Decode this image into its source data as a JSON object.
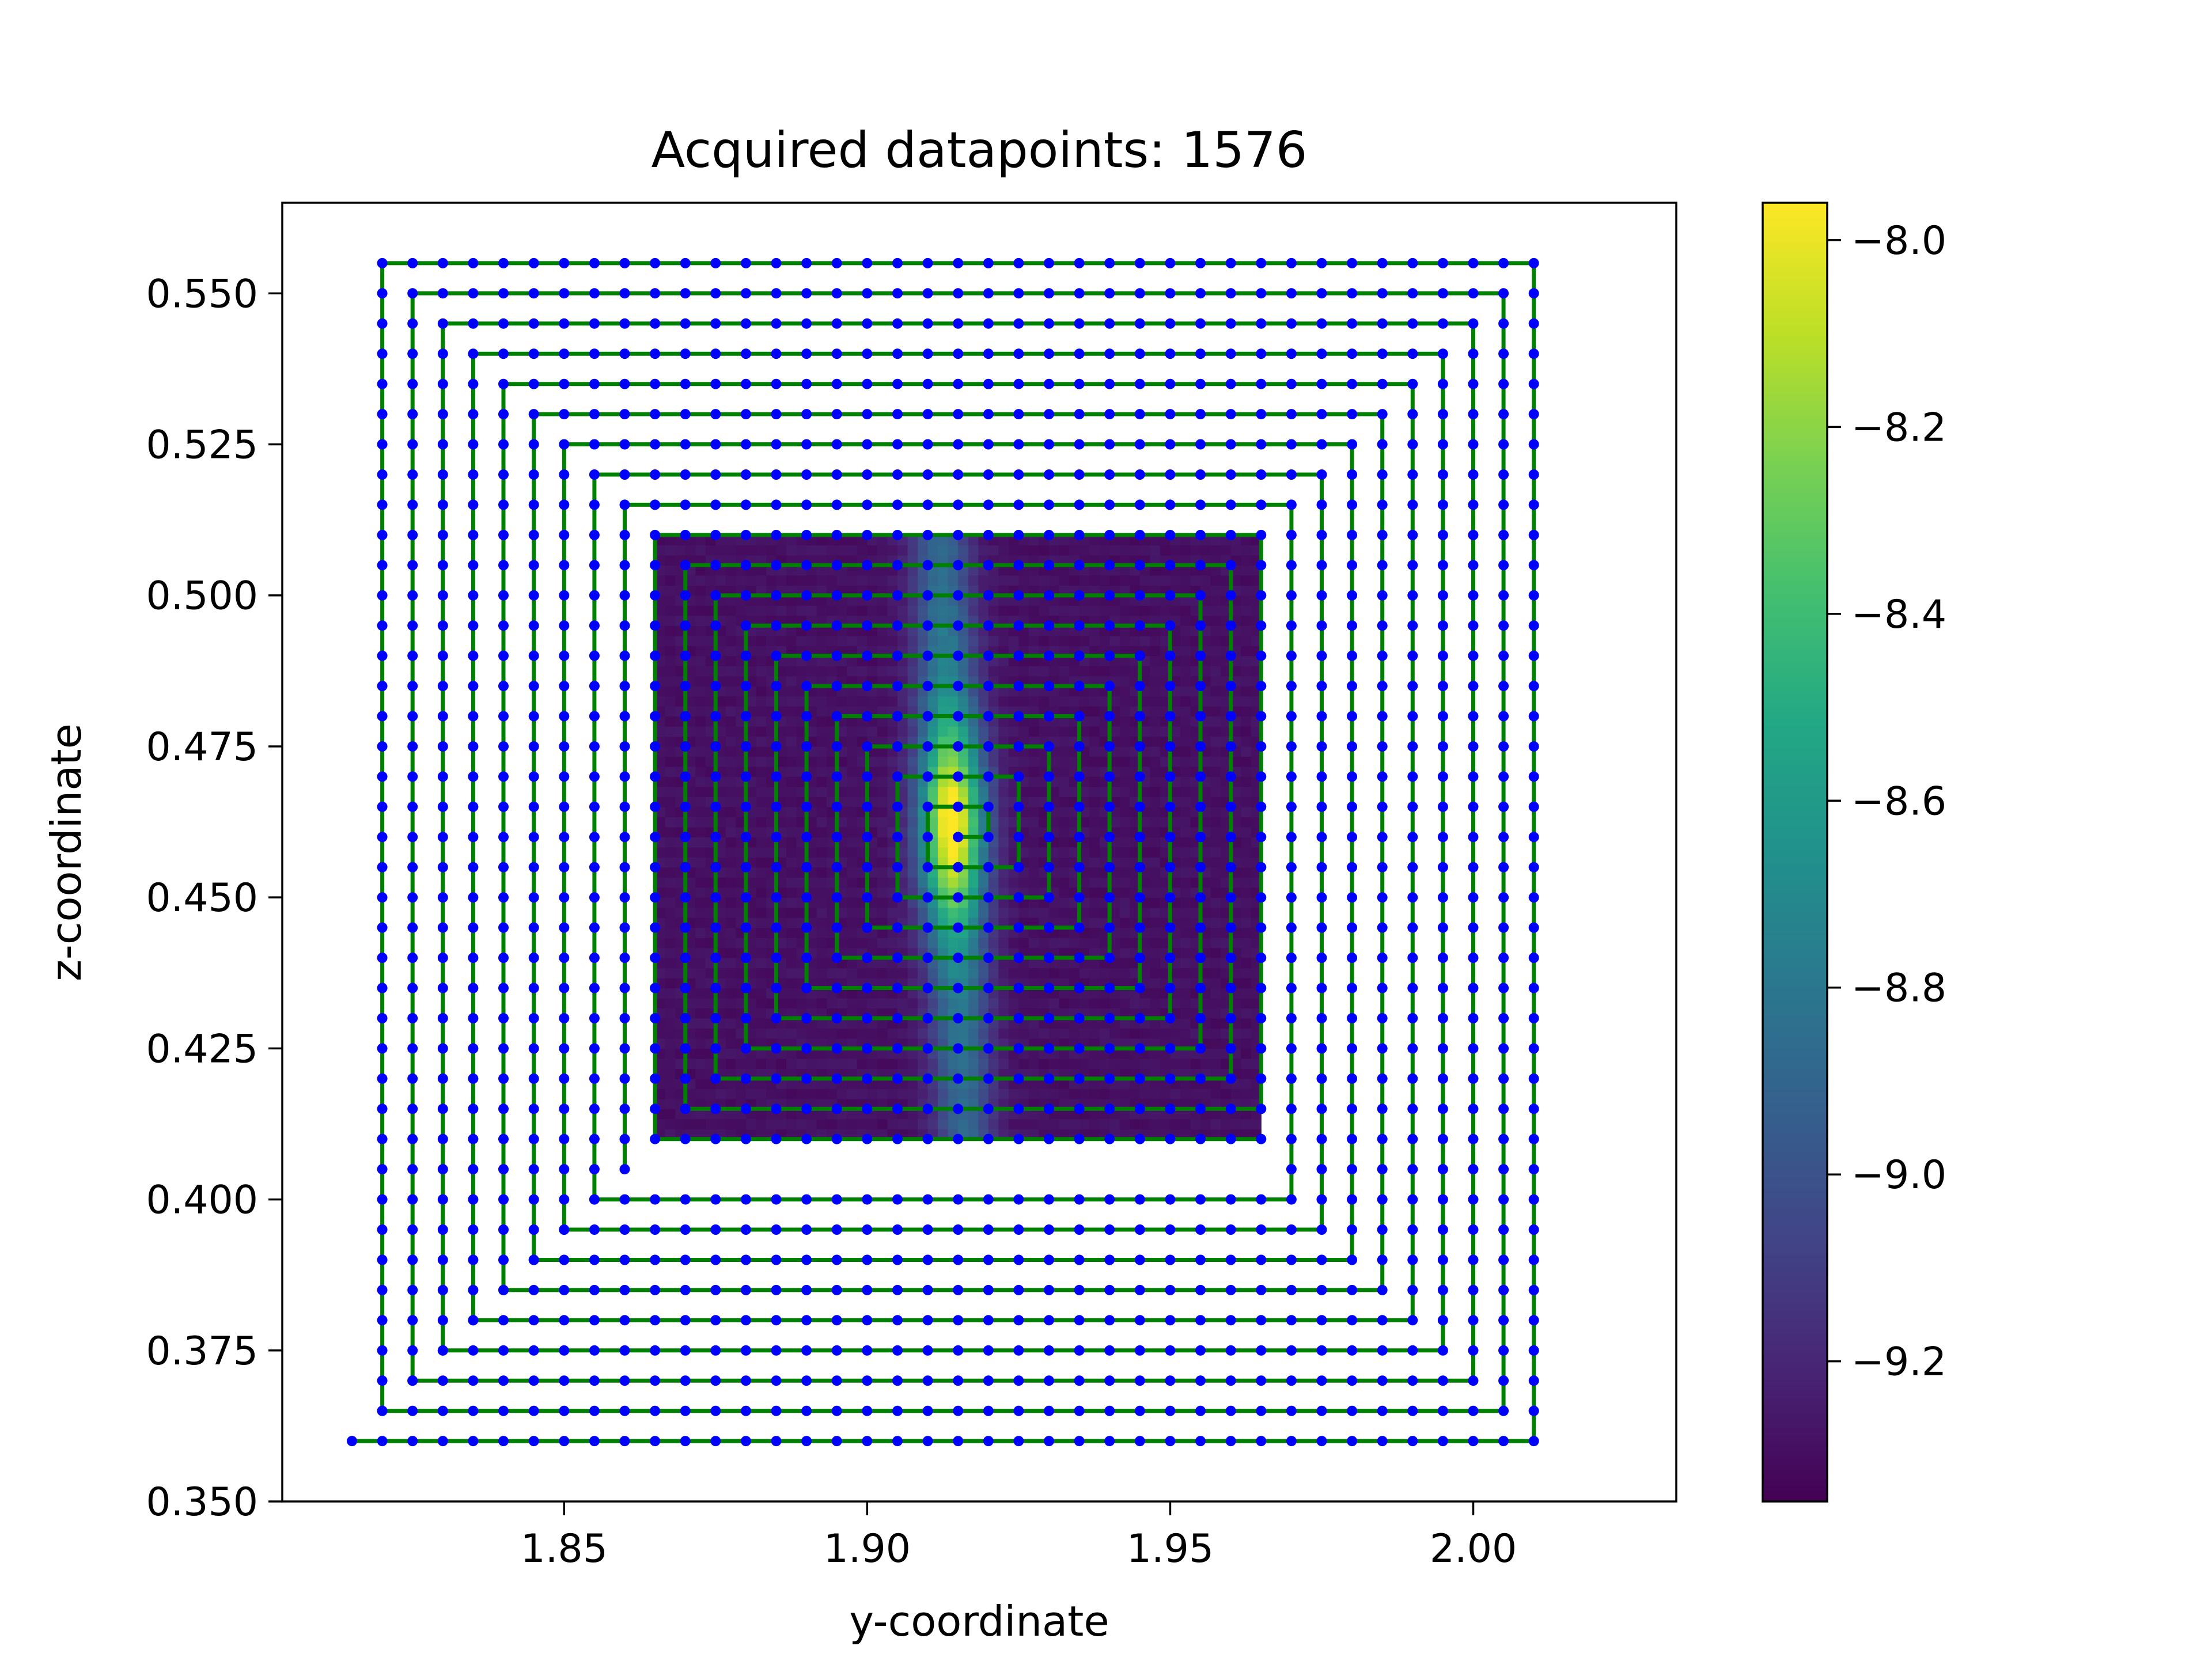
{
  "chart_data": {
    "type": "scatter",
    "title": "Acquired datapoints: 1576",
    "xlabel": "y-coordinate",
    "ylabel": "z-coordinate",
    "xlim": [
      1.8035,
      2.0335
    ],
    "ylim": [
      0.35,
      0.565
    ],
    "x_ticks": [
      "1.85",
      "1.90",
      "1.95",
      "2.00"
    ],
    "x_tick_values": [
      1.85,
      1.9,
      1.95,
      2.0
    ],
    "y_ticks": [
      "0.350",
      "0.375",
      "0.400",
      "0.425",
      "0.450",
      "0.475",
      "0.500",
      "0.525",
      "0.550"
    ],
    "y_tick_values": [
      0.35,
      0.375,
      0.4,
      0.425,
      0.45,
      0.475,
      0.5,
      0.525,
      0.55
    ],
    "grid": false,
    "scan_path": {
      "grid_step": 0.005,
      "inner_spiral": {
        "center": [
          1.915,
          0.46
        ],
        "y_range": [
          1.865,
          1.965
        ],
        "z_range": [
          0.41,
          0.51
        ]
      },
      "outer_spiral": {
        "y_range": [
          1.82,
          2.015
        ],
        "z_range": [
          0.365,
          0.555
        ],
        "start": [
          1.94,
          0.36
        ],
        "end": [
          2.015,
          0.36
        ]
      },
      "point_color": "#0000ff",
      "path_color": "#008000"
    },
    "heatmap": {
      "extent_y": [
        1.865,
        1.965
      ],
      "extent_z": [
        0.41,
        0.51
      ],
      "colormap": "viridis",
      "peak": [
        1.914,
        0.462
      ],
      "description": "vertical band of high intensity centered near y=1.914"
    },
    "colorbar": {
      "min": -9.35,
      "max": -7.96,
      "ticks": [
        "−8.0",
        "−8.2",
        "−8.4",
        "−8.6",
        "−8.8",
        "−9.0",
        "−9.2"
      ],
      "tick_values": [
        -8.0,
        -8.2,
        -8.4,
        -8.6,
        -8.8,
        -9.0,
        -9.2
      ],
      "colormap": "viridis"
    }
  }
}
